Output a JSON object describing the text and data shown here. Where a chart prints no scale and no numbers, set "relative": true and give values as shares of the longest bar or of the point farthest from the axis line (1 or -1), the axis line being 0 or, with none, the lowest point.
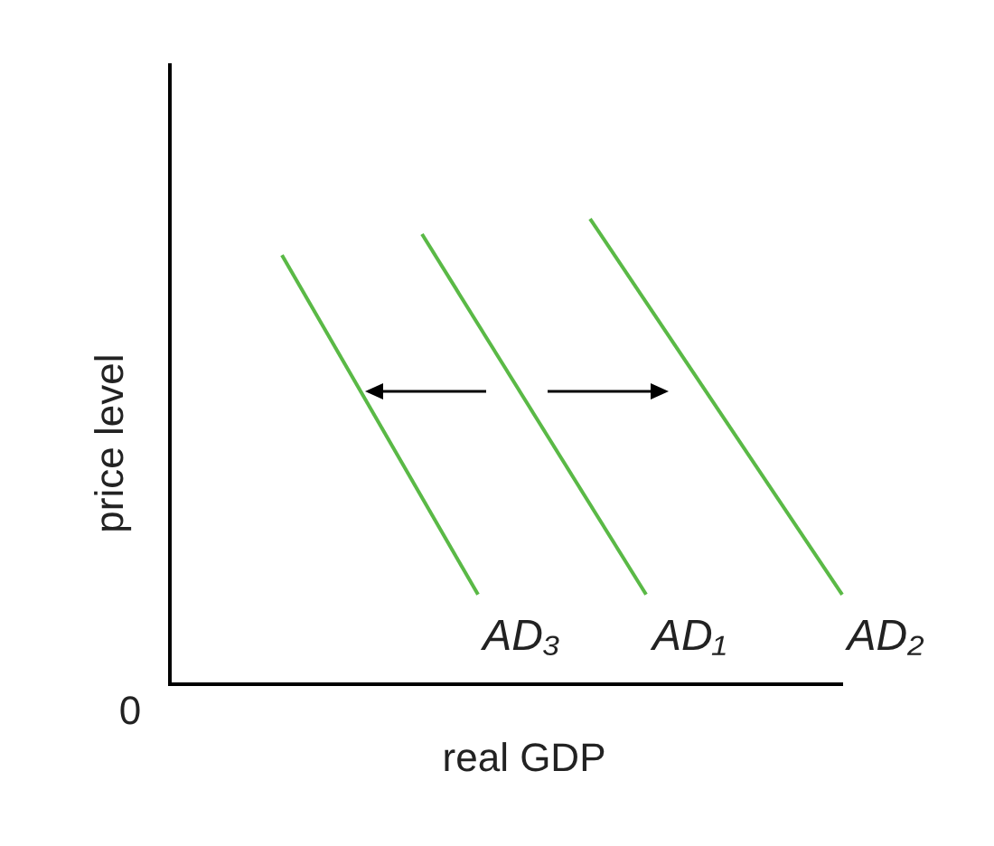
{
  "chart_data": {
    "type": "line",
    "relative": true,
    "xlabel": "real GDP",
    "ylabel": "price level",
    "annotations": [
      "0"
    ],
    "grid": false,
    "legend": false,
    "marker": "none",
    "line_style": "solid",
    "categories": [
      null,
      null,
      null,
      null,
      null,
      null,
      null,
      null,
      null,
      null,
      null,
      null,
      null,
      null,
      null,
      null,
      null,
      null,
      null,
      null,
      null,
      null,
      null,
      null,
      null
    ],
    "series": [
      {
        "name": "AD₃",
        "color": "#5ab946",
        "values": [
          null,
          null,
          null,
          null,
          0.922,
          null,
          null,
          null,
          null,
          null,
          null,
          0.193,
          null,
          null,
          null,
          null,
          null,
          null,
          null,
          null,
          null,
          null,
          null,
          null,
          null
        ]
      },
      {
        "name": "AD₁",
        "color": "#5ab946",
        "values": [
          null,
          null,
          null,
          null,
          null,
          null,
          null,
          null,
          null,
          0.967,
          null,
          null,
          null,
          null,
          null,
          null,
          null,
          0.193,
          null,
          null,
          null,
          null,
          null,
          null,
          null
        ]
      },
      {
        "name": "AD₂",
        "color": "#5ab946",
        "values": [
          null,
          null,
          null,
          null,
          null,
          null,
          null,
          null,
          null,
          null,
          null,
          null,
          null,
          null,
          null,
          1.0,
          null,
          null,
          null,
          null,
          null,
          null,
          null,
          null,
          0.193
        ]
      }
    ]
  }
}
